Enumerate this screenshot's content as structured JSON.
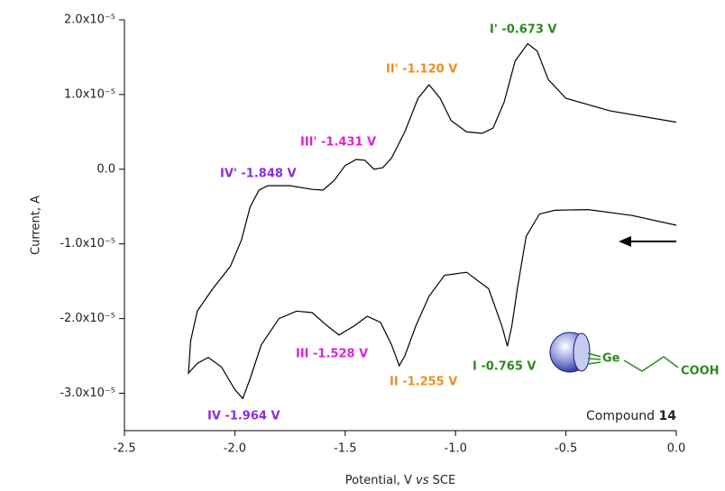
{
  "chart_data": {
    "type": "line",
    "ylabel": "Current, A",
    "xlabel_parts": [
      "Potential, V",
      "vs",
      "SCE"
    ],
    "xlim": [
      -2.5,
      0.0
    ],
    "xticks": [
      -2.5,
      {
        "value": -2,
        "label": "-2.0"
      },
      -1.5,
      {
        "value": -1,
        "label": "-1.0"
      },
      -0.5,
      {
        "value": 0,
        "label": "0.0"
      }
    ],
    "ylim": [
      -3.5e-05,
      2e-05
    ],
    "yticks": [
      {
        "value": 2e-05,
        "label": "2.0x10⁻⁵"
      },
      {
        "value": 1e-05,
        "label": "1.0x10⁻⁵"
      },
      {
        "value": 0,
        "label": "0.0"
      },
      {
        "value": -1e-05,
        "label": "-1.0x10⁻⁵"
      },
      {
        "value": -2e-05,
        "label": "-2.0x10⁻⁵"
      },
      {
        "value": -3e-05,
        "label": "-3.0x10⁻⁵"
      }
    ],
    "color": "#000000",
    "x": [
      0.0,
      -0.2,
      -0.4,
      -0.55,
      -0.62,
      -0.68,
      -0.72,
      -0.745,
      -0.765,
      -0.79,
      -0.85,
      -0.95,
      -1.05,
      -1.12,
      -1.18,
      -1.23,
      -1.255,
      -1.29,
      -1.34,
      -1.4,
      -1.46,
      -1.528,
      -1.58,
      -1.65,
      -1.72,
      -1.8,
      -1.88,
      -1.93,
      -1.964,
      -2.0,
      -2.06,
      -2.12,
      -2.17,
      -2.21,
      -2.2,
      -2.17,
      -2.1,
      -2.02,
      -1.97,
      -1.93,
      -1.89,
      -1.85,
      -1.75,
      -1.65,
      -1.6,
      -1.55,
      -1.5,
      -1.45,
      -1.41,
      -1.37,
      -1.33,
      -1.29,
      -1.23,
      -1.17,
      -1.12,
      -1.07,
      -1.02,
      -0.95,
      -0.88,
      -0.83,
      -0.78,
      -0.73,
      -0.673,
      -0.63,
      -0.58,
      -0.5,
      -0.3,
      0.0
    ],
    "values": [
      -7.5e-06,
      -6.2e-06,
      -5.4e-06,
      -5.5e-06,
      -6e-06,
      -9e-06,
      -1.6e-05,
      -2.1e-05,
      -2.37e-05,
      -2.1e-05,
      -1.6e-05,
      -1.38e-05,
      -1.42e-05,
      -1.7e-05,
      -2.1e-05,
      -2.5e-05,
      -2.63e-05,
      -2.35e-05,
      -2.05e-05,
      -1.97e-05,
      -2.1e-05,
      -2.22e-05,
      -2.1e-05,
      -1.92e-05,
      -1.9e-05,
      -2e-05,
      -2.35e-05,
      -2.8e-05,
      -3.07e-05,
      -2.95e-05,
      -2.65e-05,
      -2.52e-05,
      -2.6e-05,
      -2.73e-05,
      -2.3e-05,
      -1.9e-05,
      -1.6e-05,
      -1.3e-05,
      -9.5e-06,
      -5e-06,
      -2.8e-06,
      -2.2e-06,
      -2.2e-06,
      -2.7e-06,
      -2.8e-06,
      -1.5e-06,
      5e-07,
      1.3e-06,
      1.2e-06,
      0.0,
      2e-07,
      1.5e-06,
      5e-06,
      9.5e-06,
      1.13e-05,
      9.5e-06,
      6.5e-06,
      5e-06,
      4.8e-06,
      5.5e-06,
      9e-06,
      1.45e-05,
      1.68e-05,
      1.58e-05,
      1.2e-05,
      9.5e-06,
      7.8e-06,
      6.3e-06
    ],
    "annotations": [
      {
        "text": "I' -0.673 V",
        "color": "#2a8a1e"
      },
      {
        "text": "II' -1.120 V",
        "color": "#f28c1e"
      },
      {
        "text": "III' -1.431 V",
        "color": "#e020d8"
      },
      {
        "text": "IV' -1.848 V",
        "color": "#8a2be2"
      },
      {
        "text": "I -0.765 V",
        "color": "#2a8a1e"
      },
      {
        "text": "II -1.255 V",
        "color": "#f28c1e"
      },
      {
        "text": "III -1.528 V",
        "color": "#e020d8"
      },
      {
        "text": "IV -1.964 V",
        "color": "#8a2be2"
      }
    ],
    "compound_parts": [
      "Compound",
      "14"
    ],
    "molecule": {
      "atom": "Ge",
      "group": "COOH"
    }
  }
}
